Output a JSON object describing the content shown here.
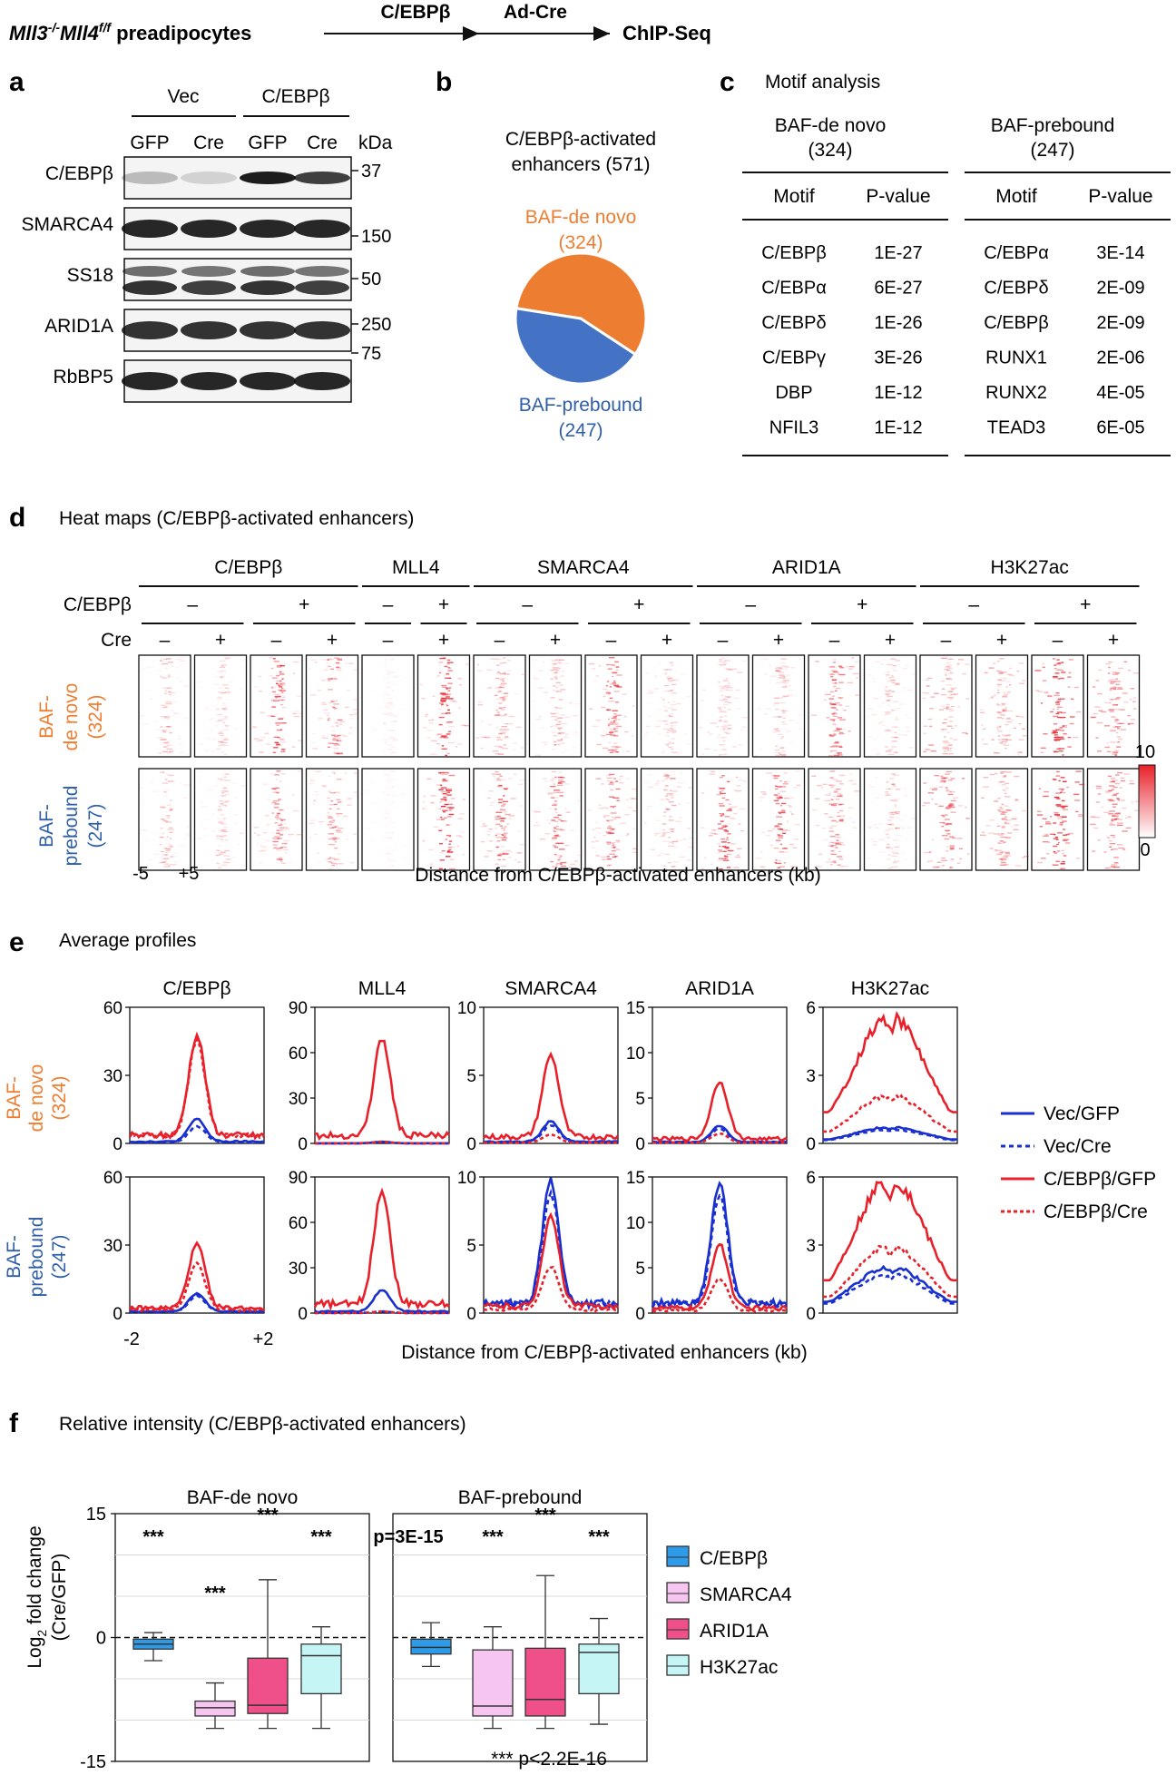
{
  "header": {
    "cell_line": "Mll3",
    "cell_sup": "-/-",
    "cell_line2": "Mll4",
    "cell_sup2": "f/f",
    "cell_rest": " preadipocytes",
    "step1": "C/EBPβ",
    "step2": "Ad-Cre",
    "step3": "ChIP-Seq"
  },
  "panel_a": {
    "letter": "a",
    "groups": [
      "Vec",
      "C/EBPβ"
    ],
    "lanes": [
      "GFP",
      "Cre",
      "GFP",
      "Cre"
    ],
    "kda_label": "kDa",
    "proteins": [
      "C/EBPβ",
      "SMARCA4",
      "SS18",
      "ARID1A",
      "RbBP5"
    ],
    "markers": [
      "37",
      "150",
      "50",
      "250",
      "75"
    ]
  },
  "panel_b": {
    "letter": "b",
    "title_line1": "C/EBPβ-activated",
    "title_line2": "enhancers (571)",
    "denovo_line1": "BAF-de novo",
    "denovo_line2": "(324)",
    "prebound_line1": "BAF-prebound",
    "prebound_line2": "(247)",
    "colors": {
      "denovo": "#ED7D31",
      "prebound": "#4472C4"
    },
    "chart_data": {
      "type": "pie",
      "labels": [
        "BAF-de novo",
        "BAF-prebound"
      ],
      "values": [
        324,
        247
      ]
    }
  },
  "panel_c": {
    "letter": "c",
    "title": "Motif analysis",
    "group1": {
      "name": "BAF-de novo",
      "count": "(324)"
    },
    "group2": {
      "name": "BAF-prebound",
      "count": "(247)"
    },
    "col_motif": "Motif",
    "col_p": "P-value",
    "rows1": [
      [
        "C/EBPβ",
        "1E-27"
      ],
      [
        "C/EBPα",
        "6E-27"
      ],
      [
        "C/EBPδ",
        "1E-26"
      ],
      [
        "C/EBPγ",
        "3E-26"
      ],
      [
        "DBP",
        "1E-12"
      ],
      [
        "NFIL3",
        "1E-12"
      ]
    ],
    "rows2": [
      [
        "C/EBPα",
        "3E-14"
      ],
      [
        "C/EBPδ",
        "2E-09"
      ],
      [
        "C/EBPβ",
        "2E-09"
      ],
      [
        "RUNX1",
        "2E-06"
      ],
      [
        "RUNX2",
        "4E-05"
      ],
      [
        "TEAD3",
        "6E-05"
      ]
    ]
  },
  "panel_d": {
    "letter": "d",
    "title": "Heat maps (C/EBPβ-activated enhancers)",
    "factors": [
      "C/EBPβ",
      "MLL4",
      "SMARCA4",
      "ARID1A",
      "H3K27ac"
    ],
    "cebpb_label": "C/EBPβ",
    "cre_label": "Cre",
    "minus": "–",
    "plus": "+",
    "row1_label1": "BAF-",
    "row1_label2": "de novo",
    "row1_label3": "(324)",
    "row2_label1": "BAF-",
    "row2_label2": "prebound",
    "row2_label3": "(247)",
    "x_left": "-5",
    "x_right": "+5",
    "xlabel": "Distance from C/EBPβ-activated enhancers (kb)",
    "scale_max": "10",
    "scale_min": "0"
  },
  "panel_e": {
    "letter": "e",
    "title": "Average profiles",
    "xlabel": "Distance from C/EBPβ-activated enhancers (kb)",
    "x_left": "-2",
    "x_right": "+2",
    "row1_label1": "BAF-",
    "row1_label2": "de novo",
    "row1_label3": "(324)",
    "row2_label1": "BAF-",
    "row2_label2": "prebound",
    "row2_label3": "(247)",
    "legend": [
      "Vec/GFP",
      "Vec/Cre",
      "C/EBPβ/GFP",
      "C/EBPβ/Cre"
    ],
    "chart_data": [
      {
        "type": "line",
        "title": "C/EBPβ",
        "x": [
          -2,
          2
        ],
        "ylim": [
          0,
          60
        ],
        "yticks": [
          "0",
          "30",
          "60"
        ],
        "peaks": {
          "denovo": [
            10,
            7,
            44,
            42
          ],
          "prebound": [
            8,
            7,
            28,
            20
          ]
        }
      },
      {
        "type": "line",
        "title": "MLL4",
        "x": [
          -2,
          2
        ],
        "ylim": [
          0,
          90
        ],
        "yticks": [
          "0",
          "30",
          "60",
          "90"
        ],
        "peaks": {
          "denovo": [
            1,
            1,
            64,
            1
          ],
          "prebound": [
            14,
            1,
            75,
            1
          ]
        }
      },
      {
        "type": "line",
        "title": "SMARCA4",
        "x": [
          -2,
          2
        ],
        "ylim": [
          0,
          10
        ],
        "yticks": [
          "0",
          "5",
          "10"
        ],
        "peaks": {
          "denovo": [
            1.5,
            1.2,
            6,
            0.6
          ],
          "prebound": [
            9,
            8,
            6.5,
            3.2
          ]
        }
      },
      {
        "type": "line",
        "title": "ARID1A",
        "x": [
          -2,
          2
        ],
        "ylim": [
          0,
          15
        ],
        "yticks": [
          "0",
          "5",
          "10",
          "15"
        ],
        "peaks": {
          "denovo": [
            1.8,
            1.5,
            6.3,
            1
          ],
          "prebound": [
            13.3,
            12,
            7,
            3.5
          ]
        }
      },
      {
        "type": "line",
        "title": "H3K27ac",
        "x": [
          -2,
          2
        ],
        "ylim": [
          0,
          6
        ],
        "yticks": [
          "0",
          "3",
          "6"
        ],
        "peaks": {
          "denovo": [
            0.7,
            0.6,
            5.5,
            2.1
          ],
          "prebound": [
            2,
            1.7,
            5.8,
            2.9
          ]
        }
      }
    ]
  },
  "panel_f": {
    "letter": "f",
    "title": "Relative intensity (C/EBPβ-activated enhancers)",
    "ylabel_main": "Log",
    "ylabel_sub": "2",
    "ylabel_rest": " fold change",
    "ylabel_line2": "(Cre/GFP)",
    "footnote": "*** p<2.2E-16",
    "legend": [
      "C/EBPβ",
      "SMARCA4",
      "ARID1A",
      "H3K27ac"
    ],
    "colors": [
      "#2E9BE8",
      "#F6C6F0",
      "#F0508A",
      "#C5F5F5"
    ],
    "chart_data": {
      "type": "box",
      "ylim": [
        -15,
        15
      ],
      "yticks": [
        "15",
        "0",
        "-15"
      ],
      "panels": [
        {
          "title": "BAF-de novo",
          "boxes": [
            {
              "name": "C/EBPβ",
              "whisk_lo": -2.8,
              "q1": -1.4,
              "median": -0.8,
              "q3": -0.2,
              "whisk_hi": 0.6,
              "sig": "***"
            },
            {
              "name": "SMARCA4",
              "whisk_lo": -11,
              "q1": -9.5,
              "median": -8.5,
              "q3": -7.7,
              "whisk_hi": -5.5,
              "sig": "***"
            },
            {
              "name": "ARID1A",
              "whisk_lo": -11,
              "q1": -9.2,
              "median": -8.2,
              "q3": -2.5,
              "whisk_hi": 7,
              "sig": "***"
            },
            {
              "name": "H3K27ac",
              "whisk_lo": -11,
              "q1": -6.8,
              "median": -2.2,
              "q3": -0.8,
              "whisk_hi": 1.3,
              "sig": "***"
            }
          ]
        },
        {
          "title": "BAF-prebound",
          "boxes": [
            {
              "name": "C/EBPβ",
              "whisk_lo": -3.5,
              "q1": -2,
              "median": -1.2,
              "q3": -0.2,
              "whisk_hi": 1.8,
              "sig": "p=3E-15"
            },
            {
              "name": "SMARCA4",
              "whisk_lo": -11,
              "q1": -9.5,
              "median": -8.3,
              "q3": -1.5,
              "whisk_hi": 1.3,
              "sig": "***"
            },
            {
              "name": "ARID1A",
              "whisk_lo": -11,
              "q1": -9.5,
              "median": -7.5,
              "q3": -1.3,
              "whisk_hi": 7.5,
              "sig": "***"
            },
            {
              "name": "H3K27ac",
              "whisk_lo": -10.5,
              "q1": -6.8,
              "median": -1.8,
              "q3": -0.8,
              "whisk_hi": 2.3,
              "sig": "***"
            }
          ]
        }
      ]
    }
  }
}
